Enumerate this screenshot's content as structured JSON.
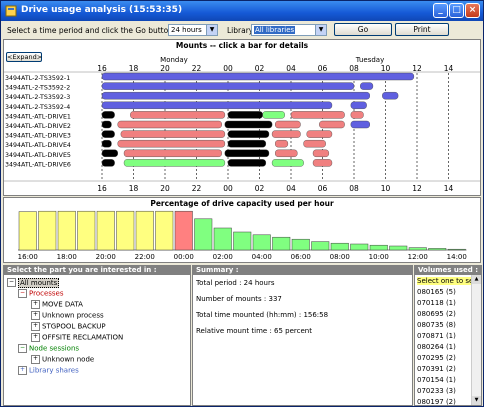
{
  "window": {
    "title": "Drive usage analysis  (15:53:35)"
  },
  "toolbar": {
    "period_label": "Select a time period and click the Go button :",
    "period_value": "24 hours",
    "library_label": "Library :",
    "library_value": "All libraries",
    "go_label": "Go",
    "print_label": "Print"
  },
  "mounts": {
    "title": "Mounts  --  click a bar for details",
    "expand_label": "<Expand>",
    "day_labels": [
      "Monday",
      "Tuesday"
    ],
    "hour_ticks": [
      "16",
      "18",
      "20",
      "22",
      "00",
      "02",
      "04",
      "06",
      "08",
      "10",
      "12",
      "14"
    ],
    "drives": [
      "3494ATL-2-TS3592-1",
      "3494ATL-2-TS3592-2",
      "3494ATL-2-TS3592-3",
      "3494ATL-2-TS3592-4",
      "3494ATL-ATL-DRIVE1",
      "3494ATL-ATL-DRIVE2",
      "3494ATL-ATL-DRIVE3",
      "3494ATL-ATL-DRIVE4",
      "3494ATL-ATL-DRIVE5",
      "3494ATL-ATL-DRIVE6"
    ]
  },
  "histogram": {
    "title": "Percentage of drive capacity used per hour",
    "hour_labels": [
      "16:00",
      "18:00",
      "20:00",
      "22:00",
      "00:00",
      "02:00",
      "04:00",
      "06:00",
      "08:00",
      "10:00",
      "12:00",
      "14:00"
    ],
    "colors": {
      "yellow": "#ffff80",
      "red": "#ff8080",
      "green": "#80ff80"
    }
  },
  "tree": {
    "header": "Select the part you are interested in :",
    "root": "All mounts",
    "processes": "Processes",
    "process_items": [
      "MOVE DATA",
      "Unknown process",
      "STGPOOL BACKUP",
      "OFFSITE RECLAMATION"
    ],
    "node_sessions": "Node sessions",
    "node_items": [
      "Unknown node"
    ],
    "library_shares": "Library shares"
  },
  "summary": {
    "header": "Summary :",
    "lines": [
      "Total period : 24 hours",
      "Number of mounts : 337",
      "Total time mounted (hh:mm) : 156:58",
      "Relative mount time : 65 percent"
    ]
  },
  "volumes": {
    "header": "Volumes used :",
    "placeholder": "Select one to see",
    "items": [
      "080165 (5)",
      "070118 (1)",
      "080695 (2)",
      "080735 (8)",
      "070871 (1)",
      "080264 (1)",
      "070295 (2)",
      "070391 (2)",
      "070154 (1)",
      "070233 (3)",
      "080197 (2)"
    ]
  }
}
